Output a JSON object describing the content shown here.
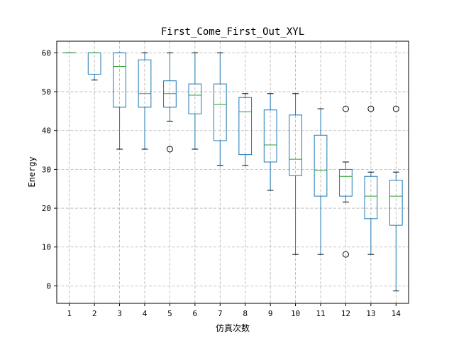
{
  "chart_data": {
    "type": "box",
    "title": "First_Come_First_Out_XYL",
    "xlabel": "仿真次数",
    "ylabel": "Energy",
    "ylim": [
      -4.5,
      63
    ],
    "yticks": [
      0,
      10,
      20,
      30,
      40,
      50,
      60
    ],
    "grid": true,
    "colors": {
      "box": "#1f77b4",
      "median": "#2ca02c",
      "whisker": "#000000",
      "grid": "#b0b0b0"
    },
    "categories": [
      "1",
      "2",
      "3",
      "4",
      "5",
      "6",
      "7",
      "8",
      "9",
      "10",
      "11",
      "12",
      "13",
      "14"
    ],
    "boxes": [
      {
        "q1": 60,
        "median": 60,
        "q3": 60,
        "whislo": 60,
        "whishi": 60,
        "fliers": []
      },
      {
        "q1": 54.5,
        "median": 60,
        "q3": 60,
        "whislo": 53,
        "whishi": 60,
        "fliers": []
      },
      {
        "q1": 46,
        "median": 56.5,
        "q3": 60,
        "whislo": 35.2,
        "whishi": 60,
        "fliers": []
      },
      {
        "q1": 46,
        "median": 49.5,
        "q3": 58.2,
        "whislo": 35.2,
        "whishi": 60,
        "fliers": []
      },
      {
        "q1": 46,
        "median": 49.5,
        "q3": 52.8,
        "whislo": 42.4,
        "whishi": 60,
        "fliers": [
          35.2
        ]
      },
      {
        "q1": 44.3,
        "median": 49.1,
        "q3": 52,
        "whislo": 35.2,
        "whishi": 60,
        "fliers": []
      },
      {
        "q1": 37.4,
        "median": 46.7,
        "q3": 52,
        "whislo": 31,
        "whishi": 60,
        "fliers": []
      },
      {
        "q1": 33.8,
        "median": 44.8,
        "q3": 48.5,
        "whislo": 31,
        "whishi": 49.5,
        "fliers": []
      },
      {
        "q1": 31.9,
        "median": 36.3,
        "q3": 45.3,
        "whislo": 24.6,
        "whishi": 49.5,
        "fliers": []
      },
      {
        "q1": 28.4,
        "median": 32.6,
        "q3": 44,
        "whislo": 8.1,
        "whishi": 49.5,
        "fliers": []
      },
      {
        "q1": 23.1,
        "median": 29.7,
        "q3": 38.8,
        "whislo": 8.1,
        "whishi": 45.6,
        "fliers": []
      },
      {
        "q1": 23.1,
        "median": 28.2,
        "q3": 30,
        "whislo": 21.6,
        "whishi": 31.9,
        "fliers": [
          45.6,
          8.1
        ]
      },
      {
        "q1": 17.3,
        "median": 23.1,
        "q3": 28.2,
        "whislo": 8.1,
        "whishi": 29.3,
        "fliers": [
          45.6
        ]
      },
      {
        "q1": 15.6,
        "median": 23.1,
        "q3": 27.2,
        "whislo": -1.3,
        "whishi": 29.3,
        "fliers": [
          45.6
        ]
      }
    ]
  }
}
